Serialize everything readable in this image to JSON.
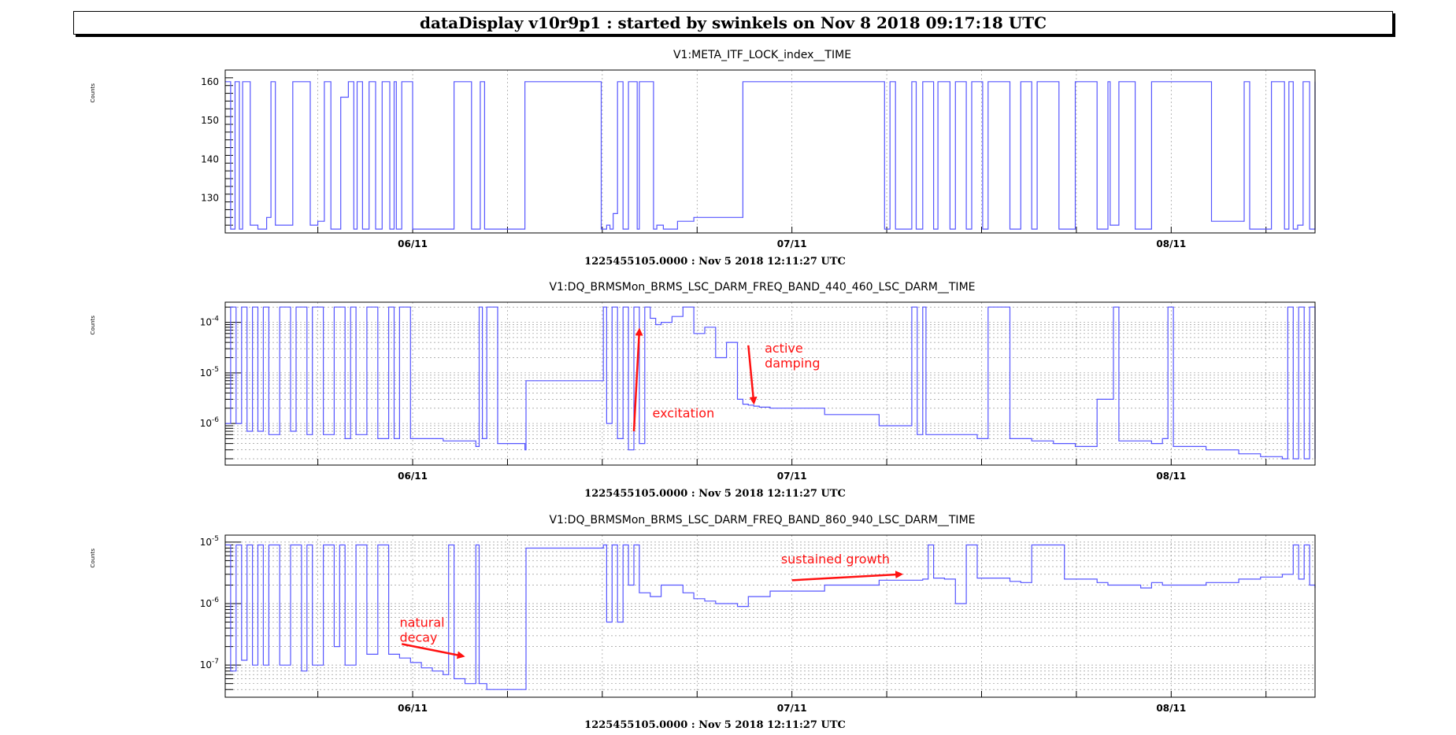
{
  "header": {
    "title": "dataDisplay v10r9p1 : started by swinkels on Nov  8 2018 09:17:18 UTC"
  },
  "colors": {
    "series": "#5656ff",
    "annotation": "#ff1111",
    "grid": "#999999"
  },
  "chart_data": [
    {
      "type": "line",
      "title": "V1:META_ITF_LOCK_index__TIME",
      "ylabel": "Counts",
      "xlabel": "1225455105.0000 : Nov  5 2018 12:11:27 UTC",
      "log_y": false,
      "ylim": [
        121,
        163
      ],
      "yticks": [
        {
          "v": 130,
          "label": "130"
        },
        {
          "v": 140,
          "label": "140"
        },
        {
          "v": 150,
          "label": "150"
        },
        {
          "v": 160,
          "label": "160"
        }
      ],
      "xlim": [
        0,
        100
      ],
      "xticks": [
        {
          "x": 17.2,
          "label": "06/11"
        },
        {
          "x": 52.0,
          "label": "07/11"
        },
        {
          "x": 86.8,
          "label": "08/11"
        }
      ],
      "x_minor_grid": [
        8.5,
        25.9,
        34.6,
        43.3,
        60.7,
        69.4,
        78.1,
        95.5
      ],
      "grid": true,
      "series": [
        {
          "x": [
            0,
            0.5,
            0.9,
            1.3,
            1.6,
            2.3,
            3.0,
            3.8,
            4.2,
            4.6,
            5.8,
            6.2,
            7.8,
            8.5,
            9.1,
            9.7,
            10.6,
            11.3,
            11.8,
            12.1,
            12.6,
            13.2,
            13.8,
            14.4,
            15.1,
            15.5,
            15.7,
            16.2,
            17.2,
            21.0,
            22.6,
            23.4,
            23.8,
            27.5,
            34.5,
            35.0,
            35.3,
            35.6,
            36.0,
            36.5,
            37.0,
            37.8,
            38.0,
            38.8,
            39.3,
            39.6,
            40.2,
            41.5,
            43.0,
            47.5,
            48.0,
            60.5,
            61.0,
            61.5,
            63.0,
            63.4,
            64.0,
            65.0,
            65.4,
            66.5,
            67.0,
            68.0,
            68.5,
            69.5,
            70.0,
            72.0,
            73.0,
            74.0,
            74.5,
            76.5,
            78.0,
            80.0,
            81.0,
            81.2,
            82.0,
            83.5,
            85.0,
            90.5,
            93.5,
            94.0,
            96.0,
            97.2,
            97.6,
            98.0,
            98.4,
            98.9,
            99.5,
            100
          ],
          "y": [
            160,
            122,
            160,
            122,
            160,
            123,
            122,
            125,
            160,
            123,
            123,
            160,
            123,
            124,
            160,
            122,
            156,
            160,
            122,
            160,
            122,
            160,
            122,
            160,
            122,
            160,
            122,
            160,
            122,
            160,
            122,
            160,
            122,
            160,
            122,
            123,
            122,
            126,
            160,
            122,
            160,
            122,
            160,
            160,
            122,
            123,
            122,
            124,
            125,
            160,
            160,
            122,
            160,
            122,
            160,
            122,
            160,
            122,
            160,
            122,
            160,
            122,
            160,
            122,
            160,
            122,
            160,
            122,
            160,
            122,
            160,
            122,
            160,
            123,
            160,
            122,
            160,
            124,
            160,
            122,
            160,
            122,
            160,
            122,
            123,
            160,
            122,
            160
          ],
          "name": ""
        }
      ],
      "annotations": []
    },
    {
      "type": "line",
      "title": "V1:DQ_BRMSMon_BRMS_LSC_DARM_FREQ_BAND_440_460_LSC_DARM__TIME",
      "ylabel": "Counts",
      "xlabel": "1225455105.0000 : Nov  5 2018 12:11:27 UTC",
      "log_y": true,
      "ylim": [
        1.5e-07,
        0.00025
      ],
      "yticks": [
        {
          "v": 1e-06,
          "label": "10",
          "exp": "-6"
        },
        {
          "v": 1e-05,
          "label": "10",
          "exp": "-5"
        },
        {
          "v": 0.0001,
          "label": "10",
          "exp": "-4"
        }
      ],
      "xlim": [
        0,
        100
      ],
      "xticks": [
        {
          "x": 17.2,
          "label": "06/11"
        },
        {
          "x": 52.0,
          "label": "07/11"
        },
        {
          "x": 86.8,
          "label": "08/11"
        }
      ],
      "x_minor_grid": [
        8.5,
        25.9,
        34.6,
        43.3,
        60.7,
        69.4,
        78.1,
        95.5
      ],
      "grid": true,
      "series": [
        {
          "x": [
            0,
            0.5,
            1.0,
            1.5,
            2.0,
            2.5,
            3.0,
            3.5,
            4.0,
            5.0,
            6.0,
            6.5,
            7.5,
            8.0,
            9.0,
            10.0,
            11.0,
            11.5,
            12.0,
            13.0,
            14.0,
            15.0,
            15.5,
            16.0,
            17.0,
            20.0,
            23.0,
            23.3,
            23.6,
            24.0,
            25.0,
            27.5,
            27.6,
            34.5,
            34.7,
            35.0,
            35.5,
            36.0,
            36.5,
            37.0,
            37.5,
            38.0,
            38.5,
            39.0,
            39.5,
            40.0,
            41.0,
            42.0,
            43.0,
            44.0,
            45.0,
            46.0,
            47.0,
            47.5,
            48.0,
            48.5,
            49.0,
            50.0,
            55.0,
            60.0,
            63.0,
            63.5,
            64.0,
            64.3,
            65.0,
            69.0,
            70.0,
            72.0,
            74.0,
            76.0,
            78.0,
            80.0,
            81.0,
            81.5,
            82.0,
            85.0,
            86.0,
            86.5,
            87.0,
            90.0,
            93.0,
            95.0,
            97.0,
            97.5,
            98.0,
            98.5,
            99.0,
            99.5,
            100
          ],
          "y": [
            1e-06,
            0.0002,
            1e-06,
            0.0002,
            7e-07,
            0.0002,
            7e-07,
            0.0002,
            6e-07,
            0.0002,
            7e-07,
            0.0002,
            6e-07,
            0.0002,
            6e-07,
            0.0002,
            5e-07,
            0.0002,
            6e-07,
            0.0002,
            5e-07,
            0.0002,
            5e-07,
            0.0002,
            5e-07,
            4.5e-07,
            3.5e-07,
            0.0002,
            5e-07,
            0.0002,
            4e-07,
            3e-07,
            7e-06,
            7e-06,
            0.0002,
            1e-06,
            0.0002,
            5e-07,
            0.0002,
            3e-07,
            0.0002,
            4e-07,
            0.0002,
            0.00012,
            9e-05,
            0.0001,
            0.00013,
            0.0002,
            6e-05,
            8e-05,
            2e-05,
            4e-05,
            3e-06,
            2.4e-06,
            2.3e-06,
            2.2e-06,
            2.1e-06,
            2e-06,
            1.5e-06,
            9e-07,
            0.0002,
            6e-07,
            0.0002,
            6e-07,
            6e-07,
            5e-07,
            0.0002,
            5e-07,
            4.5e-07,
            4e-07,
            3.5e-07,
            3e-06,
            3e-06,
            0.0002,
            4.5e-07,
            4e-07,
            5e-07,
            0.0002,
            3.5e-07,
            3e-07,
            2.5e-07,
            2.2e-07,
            2e-07,
            0.0002,
            2e-07,
            0.0002,
            2e-07,
            0.0002,
            2e-07
          ],
          "name": ""
        }
      ],
      "annotations": [
        {
          "text": "excitation",
          "x": 39.2,
          "y": 1.3e-06,
          "arrow_from": [
            37.5,
            7e-07
          ],
          "arrow_to": [
            38.0,
            7e-05
          ]
        },
        {
          "text": "active damping",
          "x": 49.5,
          "y": 2.5e-05,
          "arrow_from": [
            48.0,
            3.5e-05
          ],
          "arrow_to": [
            48.5,
            2.6e-06
          ]
        }
      ]
    },
    {
      "type": "line",
      "title": "V1:DQ_BRMSMon_BRMS_LSC_DARM_FREQ_BAND_860_940_LSC_DARM__TIME",
      "ylabel": "Counts",
      "xlabel": "1225455105.0000 : Nov  5 2018 12:11:27 UTC",
      "log_y": true,
      "ylim": [
        3e-08,
        1.3e-05
      ],
      "yticks": [
        {
          "v": 1e-07,
          "label": "10",
          "exp": "-7"
        },
        {
          "v": 1e-06,
          "label": "10",
          "exp": "-6"
        },
        {
          "v": 1e-05,
          "label": "10",
          "exp": "-5"
        }
      ],
      "xlim": [
        0,
        100
      ],
      "xticks": [
        {
          "x": 17.2,
          "label": "06/11"
        },
        {
          "x": 52.0,
          "label": "07/11"
        },
        {
          "x": 86.8,
          "label": "08/11"
        }
      ],
      "x_minor_grid": [
        8.5,
        25.9,
        34.6,
        43.3,
        60.7,
        69.4,
        78.1,
        95.5
      ],
      "grid": true,
      "series": [
        {
          "x": [
            0,
            0.5,
            1.0,
            1.5,
            2.0,
            2.5,
            3.0,
            3.5,
            4.0,
            5.0,
            6.0,
            7.0,
            7.5,
            8.0,
            9.0,
            10.0,
            10.5,
            11.0,
            12.0,
            13.0,
            14.0,
            15.0,
            16.0,
            17.0,
            18.0,
            19.0,
            20.0,
            20.5,
            21.0,
            22.0,
            23.0,
            23.3,
            23.6,
            24.0,
            27.5,
            27.6,
            34.5,
            34.7,
            35.0,
            35.5,
            36.0,
            36.5,
            37.0,
            37.5,
            38.0,
            39.0,
            40.0,
            42.0,
            43.0,
            44.0,
            45.0,
            47.0,
            48.0,
            50.0,
            55.0,
            60.0,
            64.0,
            64.5,
            65.0,
            66.0,
            67.0,
            68.0,
            69.0,
            72.0,
            73.0,
            74.0,
            77.0,
            80.0,
            81.0,
            84.0,
            85.0,
            86.0,
            87.0,
            90.0,
            93.0,
            95.0,
            97.0,
            98.0,
            98.5,
            99.0,
            99.5,
            100
          ],
          "y": [
            9e-06,
            8e-08,
            9e-06,
            1.2e-07,
            9e-06,
            1e-07,
            9e-06,
            1e-07,
            9e-06,
            1e-07,
            9e-06,
            8e-08,
            9e-06,
            1e-07,
            9e-06,
            2e-07,
            9e-06,
            1e-07,
            9e-06,
            1.5e-07,
            9e-06,
            1.5e-07,
            1.3e-07,
            1.1e-07,
            9e-08,
            8e-08,
            7e-08,
            9e-06,
            6e-08,
            5e-08,
            9e-06,
            5e-08,
            5e-08,
            4e-08,
            4e-08,
            8e-06,
            8e-06,
            9e-06,
            5e-07,
            9e-06,
            5e-07,
            9e-06,
            2e-06,
            9e-06,
            1.5e-06,
            1.3e-06,
            2e-06,
            1.5e-06,
            1.2e-06,
            1.1e-06,
            1e-06,
            9e-07,
            1.3e-06,
            1.6e-06,
            2e-06,
            2.4e-06,
            2.5e-06,
            9e-06,
            2.6e-06,
            2.5e-06,
            1e-06,
            9e-06,
            2.6e-06,
            2.3e-06,
            2.2e-06,
            9e-06,
            2.5e-06,
            2.2e-06,
            2e-06,
            1.8e-06,
            2.2e-06,
            2e-06,
            2e-06,
            2.2e-06,
            2.5e-06,
            2.7e-06,
            3e-06,
            9e-06,
            2.5e-06,
            9e-06,
            2e-06,
            1.8e-06
          ],
          "name": ""
        }
      ],
      "annotations": [
        {
          "text": "sustained growth",
          "x": 51,
          "y": 4.5e-06,
          "arrow_from": [
            52.0,
            2.4e-06
          ],
          "arrow_to": [
            62.0,
            3e-06
          ]
        },
        {
          "text": "natural decay",
          "x": 16.0,
          "y": 4.2e-07,
          "arrow_from": [
            16.2,
            2.2e-07
          ],
          "arrow_to": [
            21.8,
            1.4e-07
          ]
        }
      ]
    }
  ]
}
